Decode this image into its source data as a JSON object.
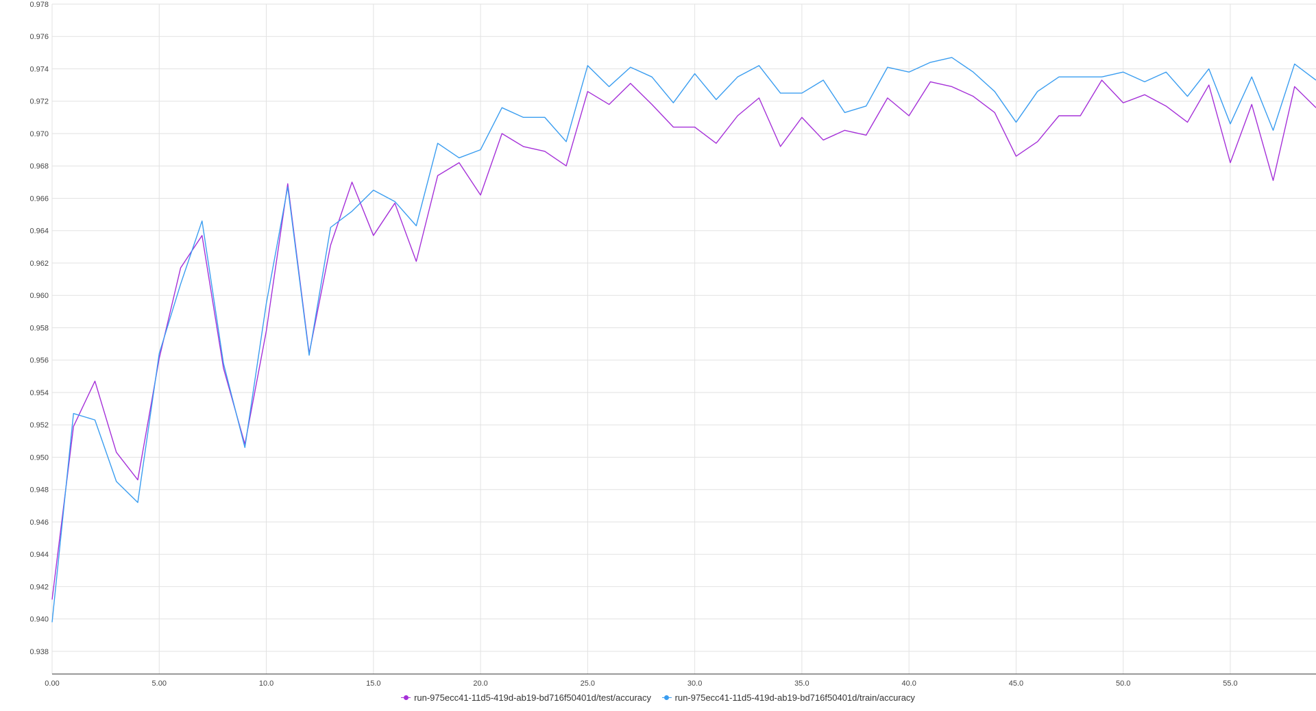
{
  "chart_data": {
    "type": "line",
    "title": "",
    "xlabel": "",
    "ylabel": "",
    "xlim": [
      0,
      59
    ],
    "ylim": [
      0.9366,
      0.978
    ],
    "grid": true,
    "legend_position": "bottom-center",
    "x_ticks": [
      0,
      5,
      10,
      15,
      20,
      25,
      30,
      35,
      40,
      45,
      50,
      55
    ],
    "x_tick_labels": [
      "0.00",
      "5.00",
      "10.0",
      "15.0",
      "20.0",
      "25.0",
      "30.0",
      "35.0",
      "40.0",
      "45.0",
      "50.0",
      "55.0"
    ],
    "y_ticks": [
      0.938,
      0.94,
      0.942,
      0.944,
      0.946,
      0.948,
      0.95,
      0.952,
      0.954,
      0.956,
      0.958,
      0.96,
      0.962,
      0.964,
      0.966,
      0.968,
      0.97,
      0.972,
      0.974,
      0.976,
      0.978
    ],
    "y_tick_labels": [
      "0.938",
      "0.940",
      "0.942",
      "0.944",
      "0.946",
      "0.948",
      "0.950",
      "0.952",
      "0.954",
      "0.956",
      "0.958",
      "0.960",
      "0.962",
      "0.964",
      "0.966",
      "0.968",
      "0.970",
      "0.972",
      "0.974",
      "0.976",
      "0.978"
    ],
    "x": [
      0,
      1,
      2,
      3,
      4,
      5,
      6,
      7,
      8,
      9,
      10,
      11,
      12,
      13,
      14,
      15,
      16,
      17,
      18,
      19,
      20,
      21,
      22,
      23,
      24,
      25,
      26,
      27,
      28,
      29,
      30,
      31,
      32,
      33,
      34,
      35,
      36,
      37,
      38,
      39,
      40,
      41,
      42,
      43,
      44,
      45,
      46,
      47,
      48,
      49,
      50,
      51,
      52,
      53,
      54,
      55,
      56,
      57,
      58,
      59
    ],
    "series": [
      {
        "name": "run-975ecc41-11d5-419d-ab19-bd716f50401d/test/accuracy",
        "color": "#a530d8",
        "values": [
          0.9412,
          0.9519,
          0.9547,
          0.9503,
          0.9486,
          0.9561,
          0.9617,
          0.9637,
          0.9555,
          0.9508,
          0.9578,
          0.9669,
          0.9564,
          0.9631,
          0.967,
          0.9637,
          0.9657,
          0.9621,
          0.9674,
          0.9682,
          0.9662,
          0.97,
          0.9692,
          0.9689,
          0.968,
          0.9726,
          0.9718,
          0.9731,
          0.9718,
          0.9704,
          0.9704,
          0.9694,
          0.9711,
          0.9722,
          0.9692,
          0.971,
          0.9696,
          0.9702,
          0.9699,
          0.9722,
          0.9711,
          0.9732,
          0.9729,
          0.9723,
          0.9713,
          0.9686,
          0.9695,
          0.9711,
          0.9711,
          0.9733,
          0.9719,
          0.9724,
          0.9717,
          0.9707,
          0.973,
          0.9682,
          0.9718,
          0.9671,
          0.9729,
          0.9716
        ]
      },
      {
        "name": "run-975ecc41-11d5-419d-ab19-bd716f50401d/train/accuracy",
        "color": "#3a9df0",
        "values": [
          0.9398,
          0.9527,
          0.9523,
          0.9485,
          0.9472,
          0.9564,
          0.9607,
          0.9646,
          0.9558,
          0.9506,
          0.9595,
          0.9667,
          0.9563,
          0.9642,
          0.9652,
          0.9665,
          0.9658,
          0.9643,
          0.9694,
          0.9685,
          0.969,
          0.9716,
          0.971,
          0.971,
          0.9695,
          0.9742,
          0.9729,
          0.9741,
          0.9735,
          0.9719,
          0.9737,
          0.9721,
          0.9735,
          0.9742,
          0.9725,
          0.9725,
          0.9733,
          0.9713,
          0.9717,
          0.9741,
          0.9738,
          0.9744,
          0.9747,
          0.9738,
          0.9726,
          0.9707,
          0.9726,
          0.9735,
          0.9735,
          0.9735,
          0.9738,
          0.9732,
          0.9738,
          0.9723,
          0.974,
          0.9706,
          0.9735,
          0.9702,
          0.9743,
          0.9733
        ]
      }
    ]
  }
}
